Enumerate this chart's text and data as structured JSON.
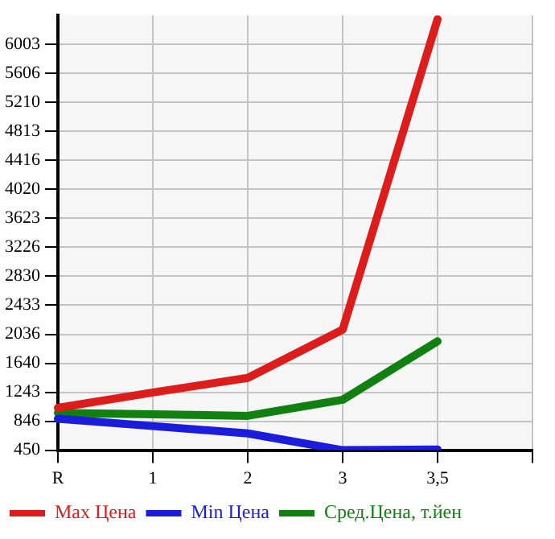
{
  "chart_data": {
    "type": "line",
    "categories": [
      "R",
      "1",
      "2",
      "3",
      "3,5",
      null
    ],
    "series": [
      {
        "name": "Max Цена",
        "color": "#dd1c1c",
        "values": [
          1030,
          1240,
          1440,
          2100,
          6350,
          null
        ]
      },
      {
        "name": "Min Цена",
        "color": "#1c1cdd",
        "values": [
          880,
          780,
          680,
          450,
          460,
          null
        ]
      },
      {
        "name": "Сред.Цена, т.йен",
        "color": "#108010",
        "values": [
          960,
          940,
          920,
          1140,
          1940,
          null
        ]
      }
    ],
    "ylim": [
      450,
      6400
    ],
    "yticks": [
      450,
      846,
      1243,
      1640,
      2036,
      2433,
      2830,
      3226,
      3623,
      4020,
      4416,
      4813,
      5210,
      5606,
      6003
    ],
    "grid": true,
    "legend": "bottom",
    "marker": "none",
    "line_style": "solid"
  }
}
